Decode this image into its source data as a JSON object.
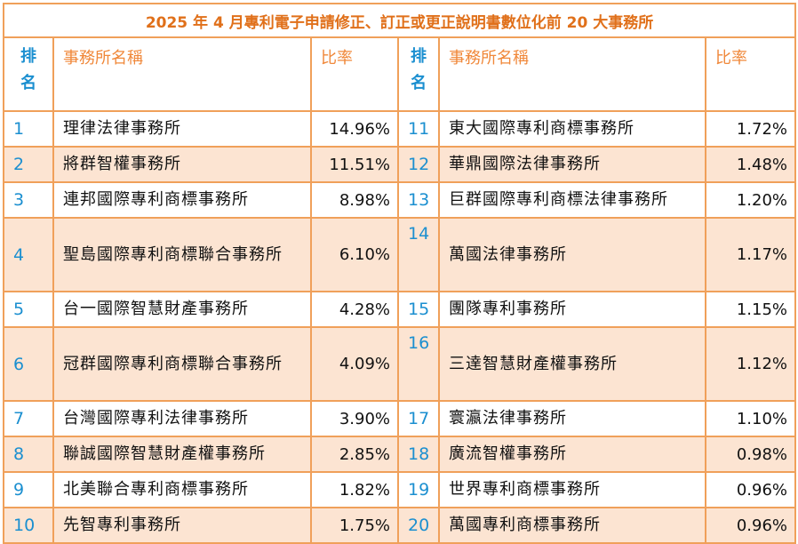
{
  "title": "2025 年 4 月專利電子申請修正、訂正或更正說明書數位化前 20 大事務所",
  "headers": {
    "rank_line1": "排",
    "rank_line2": "名",
    "name": "事務所名稱",
    "rate": "比率"
  },
  "rows": [
    {
      "left": {
        "rank": "1",
        "name": "理律法律事務所",
        "rate": "14.96%"
      },
      "right": {
        "rank": "11",
        "name": "東大國際專利商標事務所",
        "rate": "1.72%"
      }
    },
    {
      "left": {
        "rank": "2",
        "name": "將群智權事務所",
        "rate": "11.51%"
      },
      "right": {
        "rank": "12",
        "name": "華鼎國際法律事務所",
        "rate": "1.48%"
      }
    },
    {
      "left": {
        "rank": "3",
        "name": "連邦國際專利商標事務所",
        "rate": "8.98%"
      },
      "right": {
        "rank": "13",
        "name": "巨群國際專利商標法律事務所",
        "rate": "1.20%"
      }
    },
    {
      "left": {
        "rank": "4",
        "name": "聖島國際專利商標聯合事務所",
        "rate": "6.10%"
      },
      "right": {
        "rank": "14",
        "name": "萬國法律事務所",
        "rate": "1.17%"
      }
    },
    {
      "left": {
        "rank": "5",
        "name": "台一國際智慧財產事務所",
        "rate": "4.28%"
      },
      "right": {
        "rank": "15",
        "name": "團隊專利事務所",
        "rate": "1.15%"
      }
    },
    {
      "left": {
        "rank": "6",
        "name": "冠群國際專利商標聯合事務所",
        "rate": "4.09%"
      },
      "right": {
        "rank": "16",
        "name": "三達智慧財產權事務所",
        "rate": "1.12%"
      }
    },
    {
      "left": {
        "rank": "7",
        "name": "台灣國際專利法律事務所",
        "rate": "3.90%"
      },
      "right": {
        "rank": "17",
        "name": "寰瀛法律事務所",
        "rate": "1.10%"
      }
    },
    {
      "left": {
        "rank": "8",
        "name": "聯誠國際智慧財產權事務所",
        "rate": "2.85%"
      },
      "right": {
        "rank": "18",
        "name": "廣流智權事務所",
        "rate": "0.98%"
      }
    },
    {
      "left": {
        "rank": "9",
        "name": "北美聯合專利商標事務所",
        "rate": "1.82%"
      },
      "right": {
        "rank": "19",
        "name": "世界專利商標事務所",
        "rate": "0.96%"
      }
    },
    {
      "left": {
        "rank": "10",
        "name": "先智專利事務所",
        "rate": "1.75%"
      },
      "right": {
        "rank": "20",
        "name": "萬國專利商標事務所",
        "rate": "0.96%"
      }
    }
  ]
}
